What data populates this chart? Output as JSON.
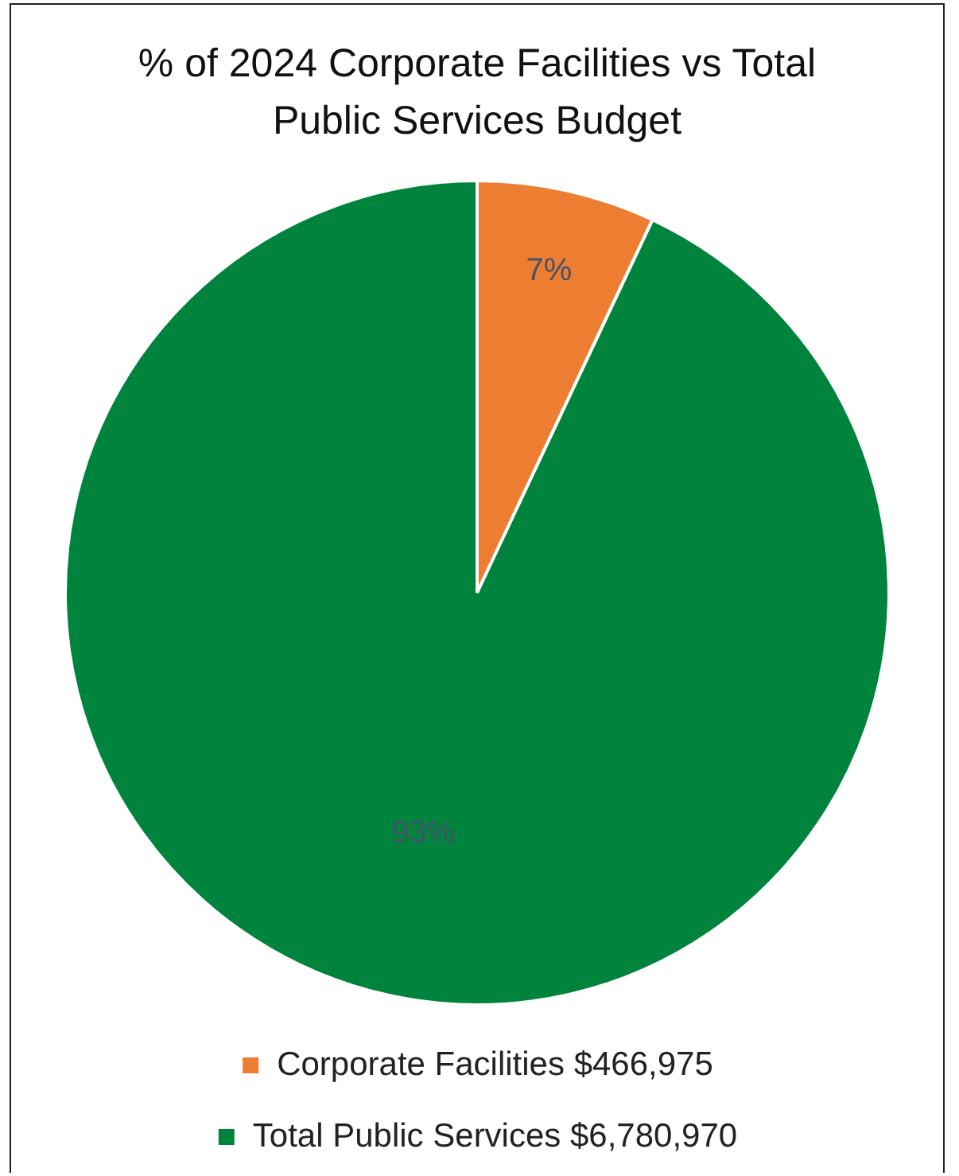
{
  "chart_data": {
    "type": "pie",
    "title": "% of 2024 Corporate Facilities vs Total Public Services Budget",
    "categories": [
      "Corporate Facilities $466,975",
      "Total Public Services $6,780,970"
    ],
    "values": [
      7,
      93
    ],
    "colors": [
      "#ed7d31",
      "#00843d"
    ],
    "value_labels": [
      "7%",
      "93%"
    ],
    "legend": "bottom"
  }
}
